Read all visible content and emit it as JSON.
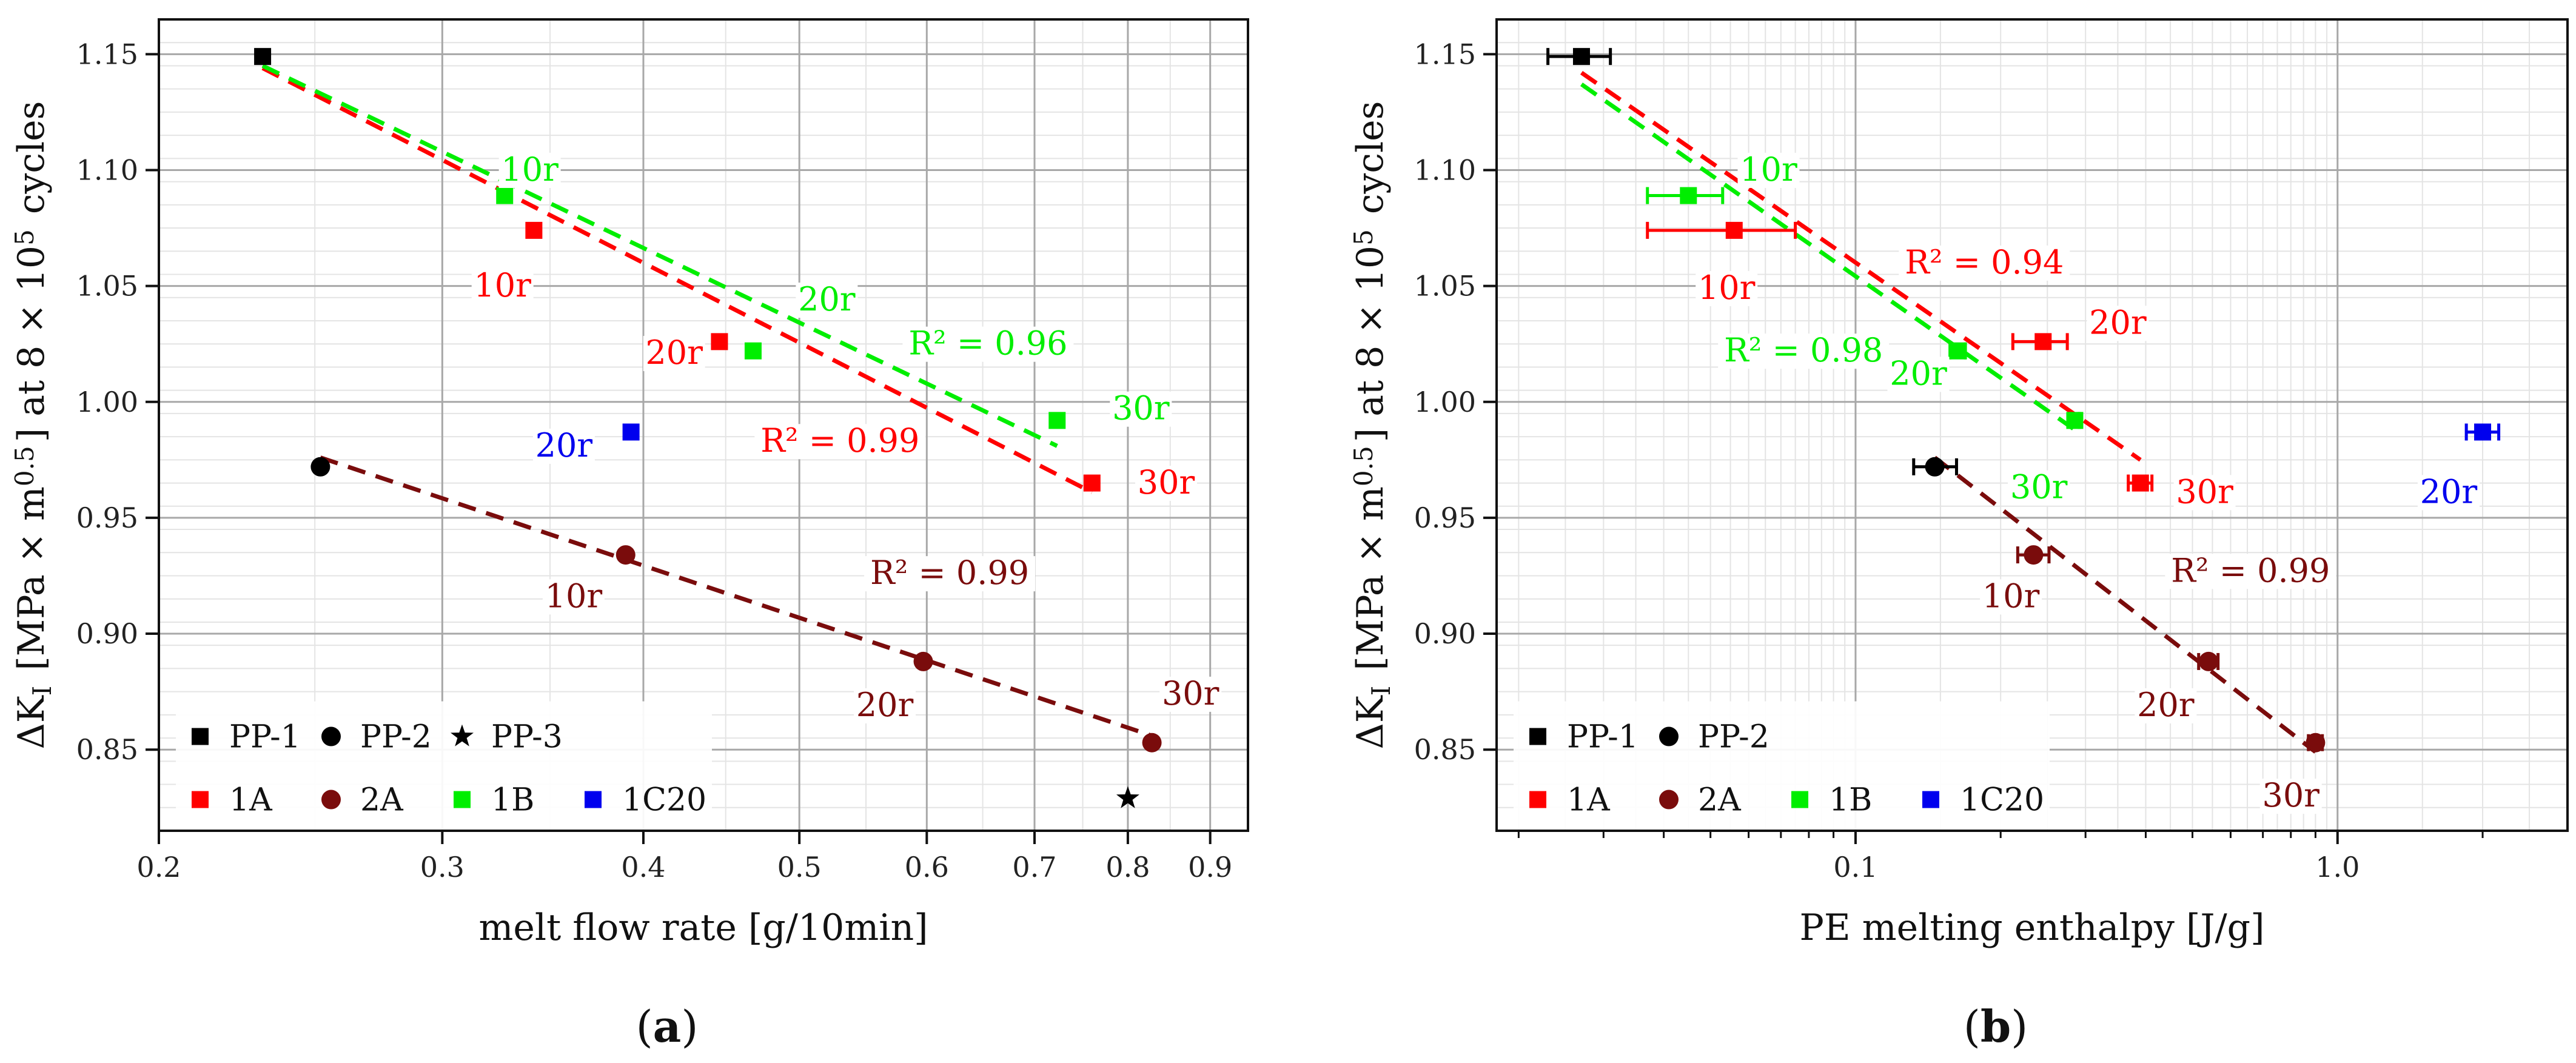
{
  "chart_data": [
    {
      "type": "scatter",
      "panel_label": "(a)",
      "xlabel": "melt flow rate [g/10min]",
      "ylabel": "ΔK_I [MPa × m^0.5] at 8 × 10^5 cycles",
      "x_scale": "log",
      "xlim": [
        0.2,
        0.95
      ],
      "ylim": [
        0.815,
        1.165
      ],
      "x_ticks": [
        0.2,
        0.3,
        0.4,
        0.5,
        0.6,
        0.7,
        0.8,
        0.9
      ],
      "x_tick_labels": [
        "0.2",
        "0.3",
        "0.4",
        "0.5",
        "0.6",
        "0.7",
        "0.8",
        "0.9"
      ],
      "y_ticks": [
        0.85,
        0.9,
        0.95,
        1.0,
        1.05,
        1.1,
        1.15
      ],
      "y_tick_labels": [
        "0.85",
        "0.90",
        "0.95",
        "1.00",
        "1.05",
        "1.10",
        "1.15"
      ],
      "grid": true,
      "legend_position": "bottom-left",
      "legend_rows": [
        [
          "PP-1",
          "PP-2",
          "PP-3"
        ],
        [
          "1A",
          "2A",
          "1B",
          "1C20"
        ]
      ],
      "series": [
        {
          "name": "PP-1",
          "marker": "square",
          "color": "#000000",
          "points": [
            {
              "x": 0.232,
              "y": 1.149
            }
          ]
        },
        {
          "name": "PP-2",
          "marker": "circle",
          "color": "#000000",
          "points": [
            {
              "x": 0.252,
              "y": 0.972
            }
          ]
        },
        {
          "name": "PP-3",
          "marker": "star",
          "color": "#000000",
          "points": [
            {
              "x": 0.8,
              "y": 0.829
            }
          ]
        },
        {
          "name": "1A",
          "marker": "square",
          "color": "#ff0000",
          "points": [
            {
              "x": 0.342,
              "y": 1.074
            },
            {
              "x": 0.446,
              "y": 1.026
            },
            {
              "x": 0.76,
              "y": 0.965
            }
          ]
        },
        {
          "name": "2A",
          "marker": "circle",
          "color": "#7a0c0c",
          "points": [
            {
              "x": 0.39,
              "y": 0.934
            },
            {
              "x": 0.597,
              "y": 0.888
            },
            {
              "x": 0.828,
              "y": 0.853
            }
          ]
        },
        {
          "name": "1B",
          "marker": "square",
          "color": "#00ee00",
          "points": [
            {
              "x": 0.328,
              "y": 1.089
            },
            {
              "x": 0.468,
              "y": 1.022
            },
            {
              "x": 0.723,
              "y": 0.992
            }
          ]
        },
        {
          "name": "1C20",
          "marker": "square",
          "color": "#0000ee",
          "points": [
            {
              "x": 0.393,
              "y": 0.987
            }
          ]
        }
      ],
      "fit_lines": [
        {
          "color": "#ff0000",
          "x": [
            0.232,
            0.76
          ],
          "y": [
            1.144,
            0.961
          ]
        },
        {
          "color": "#00ee00",
          "x": [
            0.232,
            0.723
          ],
          "y": [
            1.145,
            0.981
          ]
        },
        {
          "color": "#7a0c0c",
          "x": [
            0.252,
            0.828
          ],
          "y": [
            0.976,
            0.856
          ]
        }
      ],
      "annotations": [
        {
          "text": "10r",
          "color": "#00ee00",
          "x": 0.34,
          "y": 1.097
        },
        {
          "text": "10r",
          "color": "#ff0000",
          "x": 0.327,
          "y": 1.047
        },
        {
          "text": "20r",
          "color": "#00ee00",
          "x": 0.52,
          "y": 1.041
        },
        {
          "text": "20r",
          "color": "#ff0000",
          "x": 0.418,
          "y": 1.018
        },
        {
          "text": "R² = 0.96",
          "color": "#00ee00",
          "x": 0.655,
          "y": 1.022
        },
        {
          "text": "30r",
          "color": "#00ee00",
          "x": 0.815,
          "y": 0.994
        },
        {
          "text": "20r",
          "color": "#0000ee",
          "x": 0.357,
          "y": 0.978
        },
        {
          "text": "R² = 0.99",
          "color": "#ff0000",
          "x": 0.53,
          "y": 0.98
        },
        {
          "text": "30r",
          "color": "#ff0000",
          "x": 0.845,
          "y": 0.962
        },
        {
          "text": "R² = 0.99",
          "color": "#7a0c0c",
          "x": 0.62,
          "y": 0.923
        },
        {
          "text": "10r",
          "color": "#7a0c0c",
          "x": 0.362,
          "y": 0.913
        },
        {
          "text": "20r",
          "color": "#7a0c0c",
          "x": 0.565,
          "y": 0.866
        },
        {
          "text": "30r",
          "color": "#7a0c0c",
          "x": 0.875,
          "y": 0.871
        }
      ]
    },
    {
      "type": "scatter",
      "panel_label": "(b)",
      "xlabel": "PE melting enthalpy [J/g]",
      "ylabel": "ΔK_I [MPa × m^0.5] at 8 × 10^5 cycles",
      "x_scale": "log",
      "xlim": [
        0.018,
        3.0
      ],
      "ylim": [
        0.815,
        1.165
      ],
      "x_ticks": [
        0.1,
        1.0
      ],
      "x_tick_labels": [
        "0.1",
        "1.0"
      ],
      "y_ticks": [
        0.85,
        0.9,
        0.95,
        1.0,
        1.05,
        1.1,
        1.15
      ],
      "y_tick_labels": [
        "0.85",
        "0.90",
        "0.95",
        "1.00",
        "1.05",
        "1.10",
        "1.15"
      ],
      "grid": true,
      "legend_position": "bottom-left",
      "legend_rows": [
        [
          "PP-1",
          "PP-2"
        ],
        [
          "1A",
          "2A",
          "1B",
          "1C20"
        ]
      ],
      "series": [
        {
          "name": "PP-1",
          "marker": "square",
          "color": "#000000",
          "points": [
            {
              "x": 0.027,
              "y": 1.149,
              "xerr": [
                0.023,
                0.031
              ]
            }
          ]
        },
        {
          "name": "PP-2",
          "marker": "circle",
          "color": "#000000",
          "points": [
            {
              "x": 0.146,
              "y": 0.972,
              "xerr": [
                0.132,
                0.162
              ]
            }
          ]
        },
        {
          "name": "1A",
          "marker": "square",
          "color": "#ff0000",
          "points": [
            {
              "x": 0.056,
              "y": 1.074,
              "xerr": [
                0.037,
                0.075
              ]
            },
            {
              "x": 0.245,
              "y": 1.026,
              "xerr": [
                0.212,
                0.275
              ]
            },
            {
              "x": 0.39,
              "y": 0.965,
              "xerr": [
                0.368,
                0.412
              ]
            }
          ]
        },
        {
          "name": "2A",
          "marker": "circle",
          "color": "#7a0c0c",
          "points": [
            {
              "x": 0.234,
              "y": 0.934,
              "xerr": [
                0.217,
                0.252
              ]
            },
            {
              "x": 0.54,
              "y": 0.888,
              "xerr": [
                0.515,
                0.565
              ]
            },
            {
              "x": 0.9,
              "y": 0.853,
              "xerr": [
                0.87,
                0.93
              ]
            }
          ]
        },
        {
          "name": "1B",
          "marker": "square",
          "color": "#00ee00",
          "points": [
            {
              "x": 0.045,
              "y": 1.089,
              "xerr": [
                0.037,
                0.053
              ]
            },
            {
              "x": 0.163,
              "y": 1.022,
              "xerr": [
                0.157,
                0.169
              ]
            },
            {
              "x": 0.285,
              "y": 0.992,
              "xerr": [
                0.279,
                0.291
              ]
            }
          ]
        },
        {
          "name": "1C20",
          "marker": "square",
          "color": "#0000ee",
          "points": [
            {
              "x": 2.0,
              "y": 0.987,
              "xerr": [
                1.85,
                2.16
              ]
            }
          ]
        }
      ],
      "fit_lines": [
        {
          "color": "#ff0000",
          "x": [
            0.027,
            0.39
          ],
          "y": [
            1.142,
            0.975
          ]
        },
        {
          "color": "#00ee00",
          "x": [
            0.027,
            0.285
          ],
          "y": [
            1.137,
            0.988
          ]
        },
        {
          "color": "#7a0c0c",
          "x": [
            0.146,
            0.9
          ],
          "y": [
            0.976,
            0.849
          ]
        }
      ],
      "annotations": [
        {
          "text": "10r",
          "color": "#00ee00",
          "x": 0.066,
          "y": 1.097
        },
        {
          "text": "R² = 0.94",
          "color": "#ff0000",
          "x": 0.185,
          "y": 1.057
        },
        {
          "text": "10r",
          "color": "#ff0000",
          "x": 0.054,
          "y": 1.046
        },
        {
          "text": "20r",
          "color": "#ff0000",
          "x": 0.35,
          "y": 1.031
        },
        {
          "text": "R² = 0.98",
          "color": "#00ee00",
          "x": 0.078,
          "y": 1.019
        },
        {
          "text": "20r",
          "color": "#00ee00",
          "x": 0.135,
          "y": 1.009
        },
        {
          "text": "30r",
          "color": "#00ee00",
          "x": 0.24,
          "y": 0.96
        },
        {
          "text": "30r",
          "color": "#ff0000",
          "x": 0.53,
          "y": 0.958
        },
        {
          "text": "20r",
          "color": "#0000ee",
          "x": 1.7,
          "y": 0.958
        },
        {
          "text": "R² = 0.99",
          "color": "#7a0c0c",
          "x": 0.66,
          "y": 0.924
        },
        {
          "text": "10r",
          "color": "#7a0c0c",
          "x": 0.21,
          "y": 0.913
        },
        {
          "text": "20r",
          "color": "#7a0c0c",
          "x": 0.44,
          "y": 0.866
        },
        {
          "text": "30r",
          "color": "#7a0c0c",
          "x": 0.8,
          "y": 0.827
        }
      ]
    }
  ]
}
